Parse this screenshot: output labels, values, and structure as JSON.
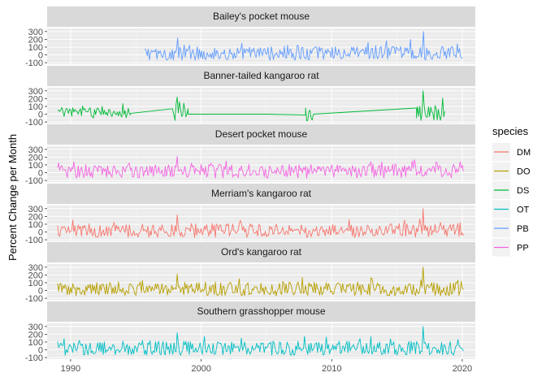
{
  "chart_data": {
    "type": "line",
    "ylabel": "Percent Change per Month",
    "xlabel": "",
    "xlim": [
      1988.2,
      2021.0
    ],
    "ylim": [
      -120,
      340
    ],
    "y_ticks": [
      -100,
      0,
      100,
      200,
      300
    ],
    "x_ticks": [
      1990,
      2000,
      2010,
      2020
    ],
    "grid": true,
    "legend": {
      "title": "species",
      "position": "right",
      "entries": [
        {
          "code": "DM",
          "color": "#F8766D"
        },
        {
          "code": "DO",
          "color": "#B79F00"
        },
        {
          "code": "DS",
          "color": "#00BA38"
        },
        {
          "code": "OT",
          "color": "#00BFC4"
        },
        {
          "code": "PB",
          "color": "#619CFF"
        },
        {
          "code": "PP",
          "color": "#F564E3"
        }
      ]
    },
    "panels": [
      {
        "title": "Bailey's pocket mouse",
        "species": "PB",
        "color": "#619CFF",
        "x_start": 1995.7,
        "x_end": 2020.1,
        "base": 20,
        "amp": 90,
        "peaks": [
          [
            1998.2,
            220
          ],
          [
            2003.1,
            150
          ],
          [
            2012.8,
            160
          ],
          [
            2014.2,
            180
          ],
          [
            2016.0,
            200
          ],
          [
            2017.0,
            300
          ],
          [
            2019.6,
            140
          ]
        ],
        "dips": [
          [
            1998.3,
            -40
          ],
          [
            2008.2,
            -60
          ],
          [
            2012.9,
            -50
          ],
          [
            2017.1,
            -50
          ]
        ]
      },
      {
        "title": "Banner-tailed kangaroo rat",
        "species": "DS",
        "color": "#00BA38",
        "x_start": 1989.0,
        "x_end": 2018.7,
        "segments": [
          {
            "type": "noise",
            "from": 1989.0,
            "to": 1994.6,
            "base": 20,
            "amp": 70
          },
          {
            "type": "line",
            "points": [
              [
                1994.6,
                10
              ],
              [
                1997.8,
                70
              ],
              [
                1998.0,
                80
              ]
            ]
          },
          {
            "type": "noise",
            "from": 1998.0,
            "to": 1999.0,
            "base": 50,
            "amp": 110
          },
          {
            "type": "line",
            "points": [
              [
                1999.0,
                0
              ],
              [
                2005.0,
                0
              ],
              [
                2008.0,
                -10
              ]
            ]
          },
          {
            "type": "noise",
            "from": 2008.0,
            "to": 2008.6,
            "base": 0,
            "amp": 90
          },
          {
            "type": "line",
            "points": [
              [
                2008.6,
                0
              ],
              [
                2016.5,
                80
              ]
            ]
          },
          {
            "type": "noise",
            "from": 2016.5,
            "to": 2018.7,
            "base": 30,
            "amp": 110
          }
        ],
        "peaks": [
          [
            1998.2,
            220
          ],
          [
            2017.0,
            300
          ]
        ],
        "dips": [
          [
            1997.9,
            -80
          ],
          [
            2016.8,
            -80
          ]
        ]
      },
      {
        "title": "Desert pocket mouse",
        "species": "PP",
        "color": "#F564E3",
        "x_start": 1989.0,
        "x_end": 2020.1,
        "base": 20,
        "amp": 90,
        "peaks": [
          [
            1998.2,
            210
          ],
          [
            2001.9,
            150
          ],
          [
            2013.0,
            140
          ],
          [
            2019.8,
            140
          ]
        ],
        "dips": [
          [
            1991.0,
            -60
          ],
          [
            2008.1,
            -70
          ]
        ]
      },
      {
        "title": "Merriam's kangaroo rat",
        "species": "DM",
        "color": "#F8766D",
        "x_start": 1989.0,
        "x_end": 2020.1,
        "base": 20,
        "amp": 90,
        "peaks": [
          [
            1998.2,
            220
          ],
          [
            2003.0,
            150
          ],
          [
            2011.3,
            160
          ],
          [
            2017.0,
            300
          ],
          [
            2019.8,
            120
          ]
        ],
        "dips": [
          [
            1992.0,
            -60
          ],
          [
            2008.2,
            -60
          ]
        ]
      },
      {
        "title": "Ord's kangaroo rat",
        "species": "DO",
        "color": "#B79F00",
        "x_start": 1989.0,
        "x_end": 2020.1,
        "base": 20,
        "amp": 90,
        "peaks": [
          [
            1998.2,
            210
          ],
          [
            2002.9,
            150
          ],
          [
            2013.0,
            160
          ],
          [
            2017.0,
            300
          ],
          [
            2019.7,
            130
          ]
        ],
        "dips": [
          [
            1995.0,
            -60
          ],
          [
            2008.2,
            -60
          ]
        ]
      },
      {
        "title": "Southern grasshopper mouse",
        "species": "OT",
        "color": "#00BFC4",
        "x_start": 1989.0,
        "x_end": 2020.1,
        "base": 20,
        "amp": 90,
        "peaks": [
          [
            1995.5,
            120
          ],
          [
            1998.2,
            220
          ],
          [
            2003.1,
            150
          ],
          [
            2013.0,
            170
          ],
          [
            2017.0,
            300
          ],
          [
            2019.7,
            130
          ]
        ],
        "dips": [
          [
            1992.5,
            -60
          ],
          [
            2008.2,
            -60
          ]
        ]
      }
    ]
  }
}
